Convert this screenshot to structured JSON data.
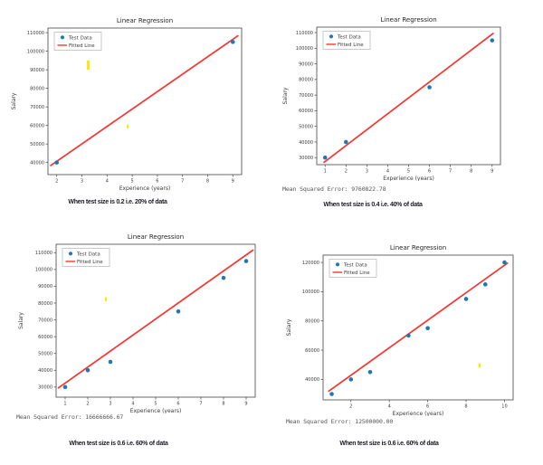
{
  "page": {
    "background": "#ffffff"
  },
  "colors": {
    "scatter": "#1f77b4",
    "fitted_line": "#f43530",
    "artifact": "#ffe70a",
    "axis": "#444444",
    "text": "#3a3a3a",
    "title": "#262626"
  },
  "chart_data": [
    {
      "type": "scatter",
      "title": "Linear Regression",
      "xlabel": "Experience (years)",
      "ylabel": "Salary",
      "legend": [
        "Test Data",
        "Fitted Line"
      ],
      "legend_position": "upper left",
      "grid": false,
      "xlim": [
        1.65,
        9.35
      ],
      "ylim": [
        33500,
        112500
      ],
      "xticks": [
        2,
        3,
        4,
        5,
        6,
        7,
        8,
        9
      ],
      "yticks": [
        40000,
        50000,
        60000,
        70000,
        80000,
        90000,
        100000,
        110000
      ],
      "test_data_points": [
        [
          2,
          40000
        ],
        [
          9,
          105000
        ]
      ],
      "fitted_line": [
        [
          1.76,
          38400
        ],
        [
          9.2,
          108300
        ]
      ],
      "artifact_marks": [
        [
          3.25,
          90000,
          95000,
          3
        ],
        [
          4.82,
          58500,
          60500,
          2.2
        ]
      ],
      "mse_text": "",
      "caption": "When test size is 0.2 i.e. 20% of data"
    },
    {
      "type": "scatter",
      "title": "Linear Regression",
      "xlabel": "Experience (years)",
      "ylabel": "Salary",
      "legend": [
        "Test Data",
        "Fitted Line"
      ],
      "legend_position": "upper left",
      "grid": false,
      "xlim": [
        0.6,
        9.4
      ],
      "ylim": [
        25500,
        113500
      ],
      "xticks": [
        1,
        2,
        3,
        4,
        5,
        6,
        7,
        8,
        9
      ],
      "yticks": [
        30000,
        40000,
        50000,
        60000,
        70000,
        80000,
        90000,
        100000,
        110000
      ],
      "test_data_points": [
        [
          1,
          30000
        ],
        [
          2,
          40000
        ],
        [
          6,
          75000
        ],
        [
          9,
          105000
        ]
      ],
      "fitted_line": [
        [
          0.95,
          27000
        ],
        [
          9.05,
          109500
        ]
      ],
      "artifact_marks": [],
      "mse_text": "Mean Squared Error: 9760822.78",
      "caption": "When test size is 0.4 i.e. 40% of data"
    },
    {
      "type": "scatter",
      "title": "Linear Regression",
      "xlabel": "Experience (years)",
      "ylabel": "Salary",
      "legend": [
        "Test Data",
        "Fitted Line"
      ],
      "legend_position": "upper left",
      "grid": false,
      "xlim": [
        0.6,
        9.4
      ],
      "ylim": [
        24000,
        115000
      ],
      "xticks": [
        1,
        2,
        3,
        4,
        5,
        6,
        7,
        8,
        9
      ],
      "yticks": [
        30000,
        40000,
        50000,
        60000,
        70000,
        80000,
        90000,
        100000,
        110000
      ],
      "test_data_points": [
        [
          1,
          30000
        ],
        [
          2,
          40000
        ],
        [
          3,
          45000
        ],
        [
          6,
          75000
        ],
        [
          8,
          95000
        ],
        [
          9,
          105000
        ]
      ],
      "fitted_line": [
        [
          0.7,
          29500
        ],
        [
          9.3,
          111500
        ]
      ],
      "artifact_marks": [
        [
          2.8,
          81000,
          83500,
          2
        ]
      ],
      "mse_text": "Mean Squared Error: 16666666.67",
      "caption": "When test size is 0.6 i.e. 60% of data"
    },
    {
      "type": "scatter",
      "title": "Linear Regression",
      "xlabel": "Experience (years)",
      "ylabel": "Salary",
      "legend": [
        "Test Data",
        "Fitted Line"
      ],
      "legend_position": "upper left",
      "grid": false,
      "xlim": [
        0.55,
        10.45
      ],
      "ylim": [
        26000,
        125000
      ],
      "xticks": [
        2,
        4,
        6,
        8,
        10
      ],
      "yticks": [
        40000,
        60000,
        80000,
        100000,
        120000
      ],
      "test_data_points": [
        [
          1,
          30000
        ],
        [
          2,
          40000
        ],
        [
          3,
          45000
        ],
        [
          5,
          70000
        ],
        [
          6,
          75000
        ],
        [
          8,
          95000
        ],
        [
          9,
          105000
        ],
        [
          10,
          120000
        ]
      ],
      "fitted_line": [
        [
          0.85,
          32000
        ],
        [
          10.15,
          119500
        ]
      ],
      "artifact_marks": [
        [
          8.7,
          48000,
          51000,
          2.5
        ]
      ],
      "mse_text": "Mean Squared Error: 12500000.00",
      "caption": "When test size is 0.6 i.e. 60% of data"
    }
  ]
}
